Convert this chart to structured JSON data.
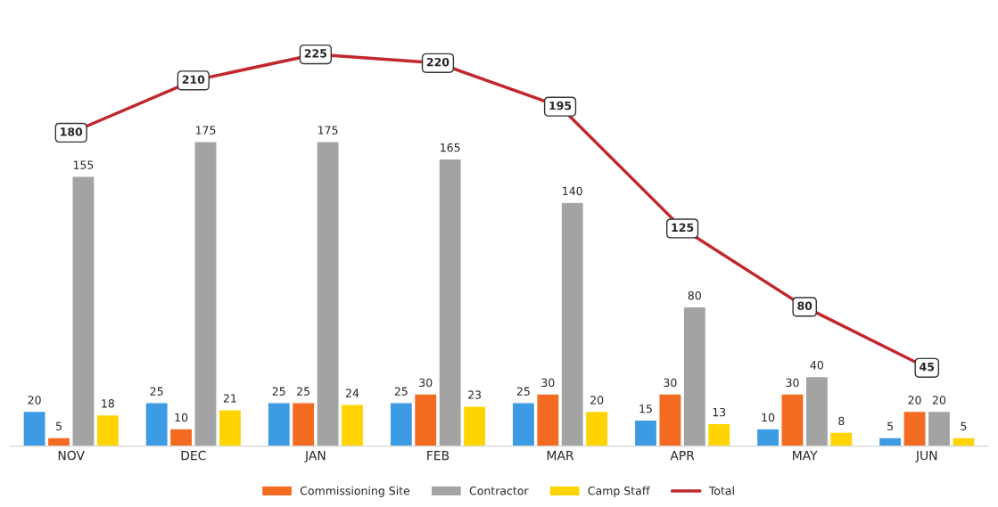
{
  "chart_data": {
    "type": "bar",
    "categories": [
      "NOV",
      "DEC",
      "JAN",
      "FEB",
      "MAR",
      "APR",
      "MAY",
      "JUN"
    ],
    "series": [
      {
        "color": "#3d9be3",
        "values": [
          20,
          25,
          25,
          25,
          25,
          15,
          10,
          5
        ]
      },
      {
        "name": "Commissioning Site",
        "color": "#f26b21",
        "values": [
          5,
          10,
          25,
          30,
          30,
          30,
          30,
          20
        ]
      },
      {
        "name": "Contractor",
        "color": "#a3a3a3",
        "values": [
          155,
          175,
          175,
          165,
          140,
          80,
          40,
          20
        ]
      },
      {
        "name": "Camp Staff",
        "color": "#ffd400",
        "values": [
          18,
          21,
          24,
          23,
          20,
          13,
          8,
          5
        ]
      },
      {
        "name": "Total",
        "type": "line",
        "marker": "square",
        "color": "#c0282d",
        "values": [
          180,
          210,
          225,
          220,
          195,
          125,
          80,
          45
        ]
      }
    ],
    "tick_labels": "x",
    "data_labels": true,
    "legend": "bottom",
    "grid": false
  }
}
